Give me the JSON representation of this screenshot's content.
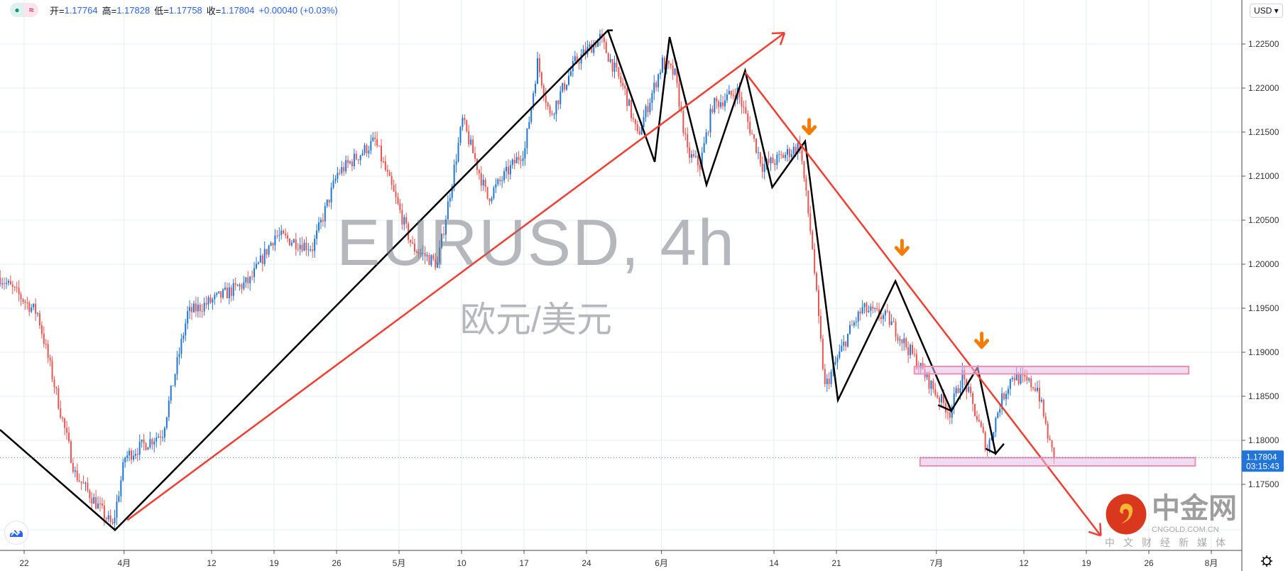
{
  "legend": {
    "open_label": "开=",
    "open": "1.17764",
    "high_label": "高=",
    "high": "1.17828",
    "low_label": "低=",
    "low": "1.17758",
    "close_label": "收=",
    "close": "1.17804",
    "change": "+0.00040 (+0.03%)"
  },
  "currency_button": "USD ▾",
  "watermark": {
    "symbol": "EURUSD, 4h",
    "name": "欧元/美元"
  },
  "last_price": {
    "price": "1.17804",
    "countdown": "03:15:43"
  },
  "brand": {
    "name": "中金网",
    "url": "CNGOLD.COM.CN",
    "tagline": "中文财经新媒体"
  },
  "icons": {
    "status": "dot-icon",
    "compare": "wave-icon",
    "settings": "gear-icon",
    "logo": "tradingview-cloud-icon"
  },
  "colors": {
    "up": "#1e76d8",
    "down": "#ef5350",
    "trendline": "#f23d30",
    "zigzag": "#000000",
    "marker": "#f57c00",
    "zone": "#e1bee7",
    "zone_border": "#f48fb1",
    "price_tag": "#2174d9"
  },
  "chart_data": {
    "type": "candlestick",
    "symbol": "EURUSD",
    "timeframe": "4h",
    "y_ticks": [
      "1.22500",
      "1.22000",
      "1.21500",
      "1.21000",
      "1.20500",
      "1.20000",
      "1.19500",
      "1.19000",
      "1.18500",
      "1.18000",
      "1.17500"
    ],
    "ylim": [
      1.1665,
      1.2297
    ],
    "x_ticks": [
      {
        "label": "22",
        "date": "2021-03-22"
      },
      {
        "label": "4月",
        "date": "2021-04-01"
      },
      {
        "label": "12",
        "date": "2021-04-12"
      },
      {
        "label": "19",
        "date": "2021-04-19"
      },
      {
        "label": "26",
        "date": "2021-04-26"
      },
      {
        "label": "5月",
        "date": "2021-05-03"
      },
      {
        "label": "10",
        "date": "2021-05-10"
      },
      {
        "label": "17",
        "date": "2021-05-17"
      },
      {
        "label": "24",
        "date": "2021-05-24"
      },
      {
        "label": "6月",
        "date": "2021-06-01"
      },
      {
        "label": "14",
        "date": "2021-06-14"
      },
      {
        "label": "21",
        "date": "2021-06-21"
      },
      {
        "label": "7月",
        "date": "2021-07-01"
      },
      {
        "label": "12",
        "date": "2021-07-12"
      },
      {
        "label": "19",
        "date": "2021-07-19"
      },
      {
        "label": "26",
        "date": "2021-07-26"
      },
      {
        "label": "8月",
        "date": "2021-08-02"
      }
    ],
    "approx_price_path": [
      [
        "2021-03-18",
        1.1985
      ],
      [
        "2021-03-23",
        1.1944
      ],
      [
        "2021-03-26",
        1.1762
      ],
      [
        "2021-03-31",
        1.1702
      ],
      [
        "2021-04-01",
        1.1781
      ],
      [
        "2021-04-06",
        1.1809
      ],
      [
        "2021-04-08",
        1.1944
      ],
      [
        "2021-04-15",
        1.1981
      ],
      [
        "2021-04-19",
        1.2033
      ],
      [
        "2021-04-22",
        1.2019
      ],
      [
        "2021-04-26",
        1.2103
      ],
      [
        "2021-04-29",
        1.214
      ],
      [
        "2021-05-04",
        1.2019
      ],
      [
        "2021-05-06",
        1.2
      ],
      [
        "2021-05-10",
        1.2163
      ],
      [
        "2021-05-12",
        1.2075
      ],
      [
        "2021-05-17",
        1.2131
      ],
      [
        "2021-05-18",
        1.2229
      ],
      [
        "2021-05-19",
        1.2168
      ],
      [
        "2021-05-21",
        1.2229
      ],
      [
        "2021-05-25",
        1.2257
      ],
      [
        "2021-05-27",
        1.2196
      ],
      [
        "2021-05-28",
        1.2145
      ],
      [
        "2021-06-01",
        1.2229
      ],
      [
        "2021-06-02",
        1.2215
      ],
      [
        "2021-06-03",
        1.2126
      ],
      [
        "2021-06-04",
        1.2112
      ],
      [
        "2021-06-07",
        1.218
      ],
      [
        "2021-06-09",
        1.2196
      ],
      [
        "2021-06-11",
        1.2112
      ],
      [
        "2021-06-14",
        1.2117
      ],
      [
        "2021-06-16",
        1.2135
      ],
      [
        "2021-06-17 00:00",
        1.2019
      ],
      [
        "2021-06-17 12:00",
        1.1935
      ],
      [
        "2021-06-18",
        1.186
      ],
      [
        "2021-06-22",
        1.1925
      ],
      [
        "2021-06-23",
        1.1949
      ],
      [
        "2021-06-25",
        1.1939
      ],
      [
        "2021-06-29",
        1.1897
      ],
      [
        "2021-07-01",
        1.1851
      ],
      [
        "2021-07-02",
        1.1832
      ],
      [
        "2021-07-05",
        1.1874
      ],
      [
        "2021-07-07",
        1.179
      ],
      [
        "2021-07-08",
        1.1841
      ],
      [
        "2021-07-09",
        1.1874
      ],
      [
        "2021-07-13",
        1.186
      ],
      [
        "2021-07-14 00:00",
        1.1795
      ],
      [
        "2021-07-14 08:00",
        1.17804
      ]
    ],
    "last_price": 1.17804,
    "grid": true
  }
}
